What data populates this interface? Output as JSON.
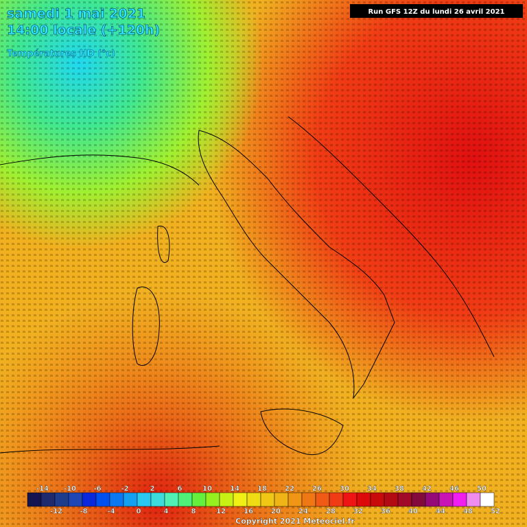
{
  "header": {
    "date": "samedi 1 mai 2021",
    "time": "14:00 locale (+120h)",
    "parameter": "Températures HD (°c)",
    "run": "Run GFS 12Z du lundi 26 avril 2021"
  },
  "legend": {
    "colors": [
      "#141450",
      "#1e2a6e",
      "#1e3c8c",
      "#1e46b4",
      "#0a28dc",
      "#0050f0",
      "#0a78f0",
      "#14a0f0",
      "#28c8f0",
      "#3cdcdc",
      "#50f0b4",
      "#50f078",
      "#64f03c",
      "#96f01e",
      "#c8f014",
      "#f0f014",
      "#f0dc14",
      "#f0c814",
      "#f0b414",
      "#f09614",
      "#f07814",
      "#f05a14",
      "#f03c14",
      "#f01414",
      "#dc0a0a",
      "#c80a0a",
      "#b40a14",
      "#a00a28",
      "#820a3c",
      "#960a78",
      "#c814b4",
      "#f01ef0",
      "#f08cf0",
      "#ffffff"
    ],
    "top_labels": [
      -14,
      -10,
      -6,
      -2,
      2,
      6,
      10,
      14,
      18,
      22,
      26,
      30,
      34,
      38,
      42,
      46,
      50
    ],
    "bottom_labels": [
      -12,
      -8,
      -4,
      0,
      4,
      8,
      12,
      16,
      20,
      24,
      28,
      32,
      36,
      40,
      44,
      48,
      52
    ]
  },
  "footer": {
    "copyright": "Copyright 2021 Meteociel.fr"
  }
}
